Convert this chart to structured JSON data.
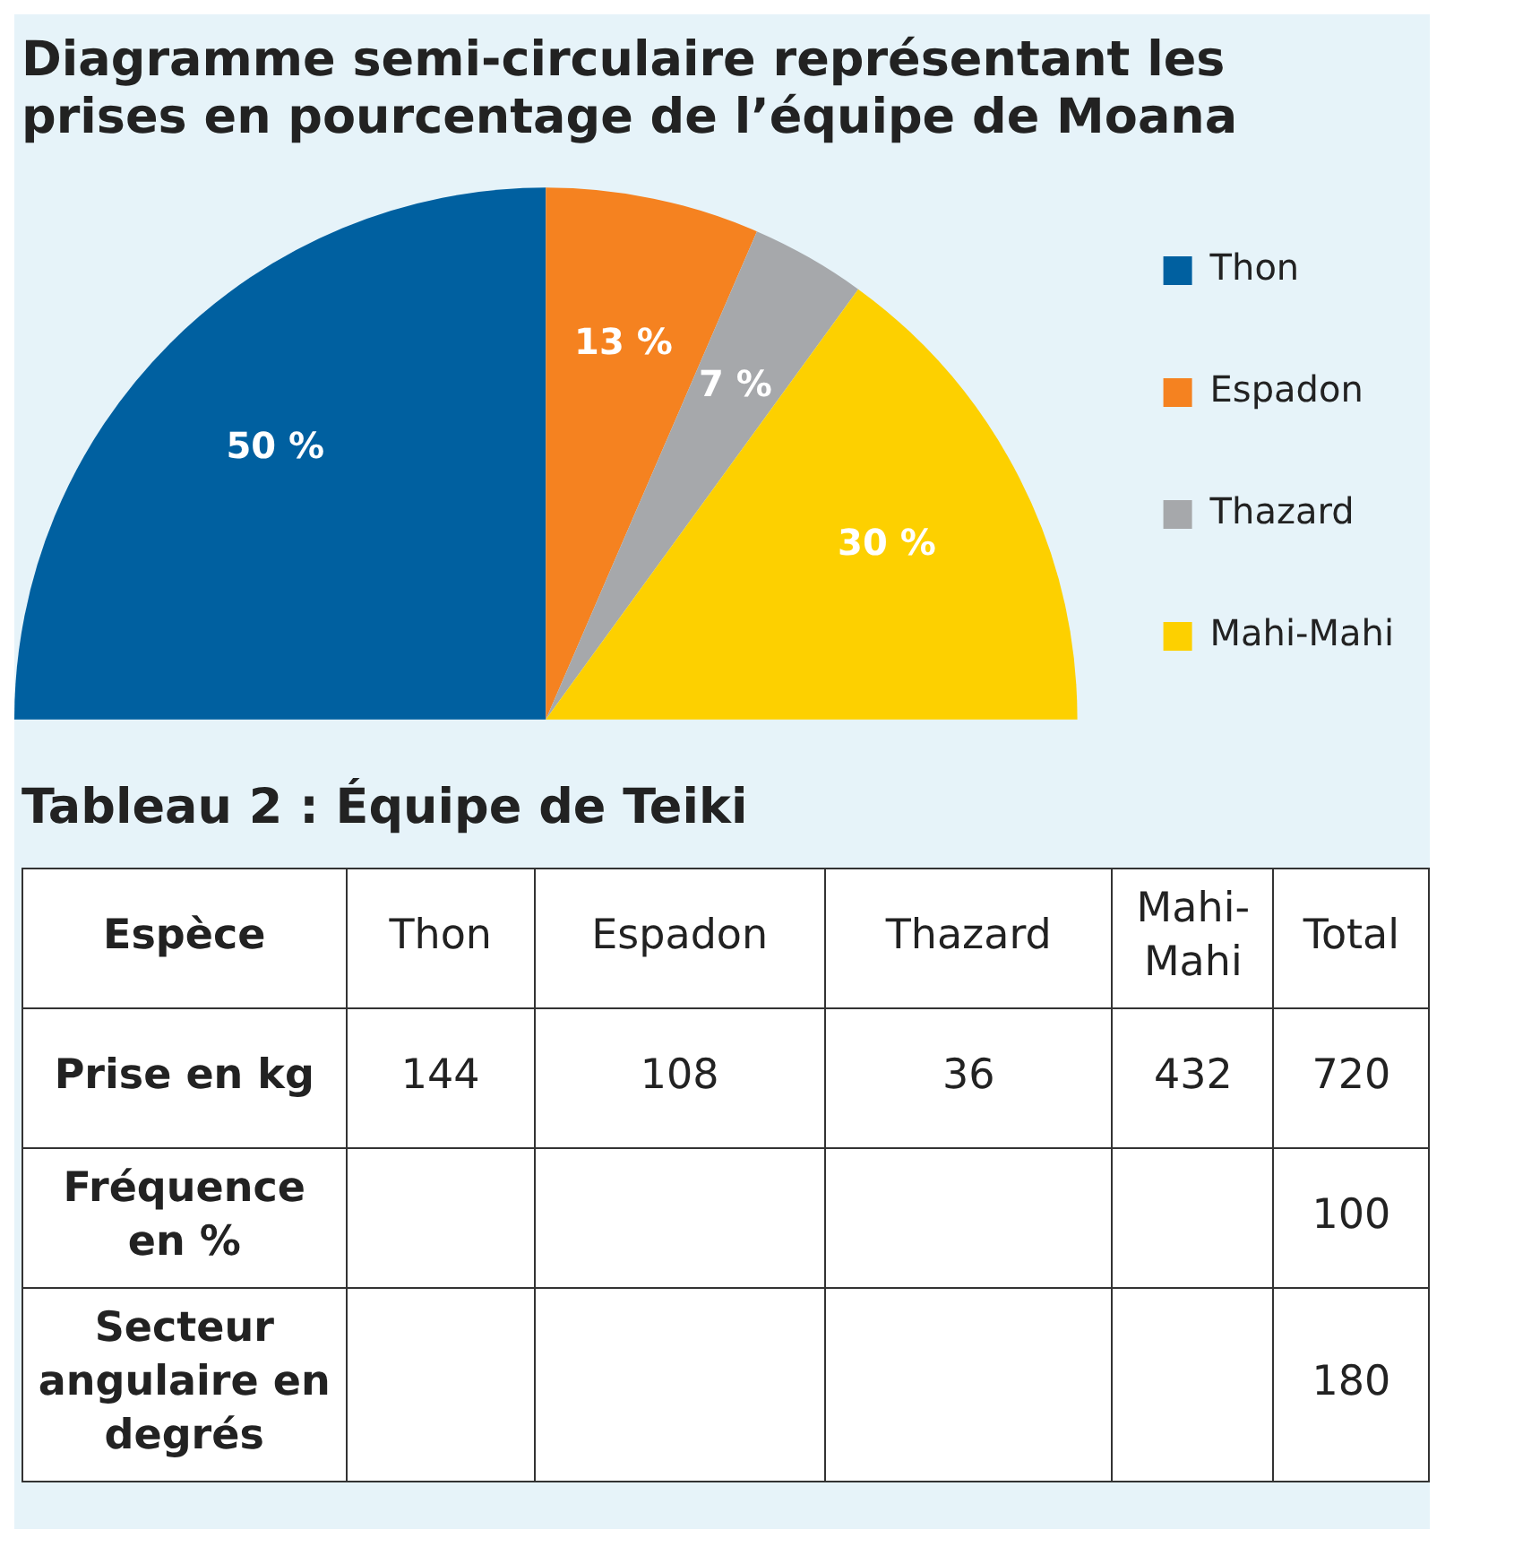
{
  "chart_data": [
    {
      "type": "pie",
      "title": "Diagramme semi-circulaire représentant les prises en pourcentage de l’équipe de Moana",
      "categories": [
        "Thon",
        "Espadon",
        "Thazard",
        "Mahi-Mahi"
      ],
      "values": [
        50,
        13,
        7,
        30
      ],
      "colors": [
        "#0060a0",
        "#f58220",
        "#a6a8ab",
        "#fdd000"
      ],
      "value_labels": [
        "50 %",
        "13 %",
        "7 %",
        "30 %"
      ],
      "legend": "right"
    },
    {
      "type": "other",
      "title": "Tableau 2 : Équipe de Teiki",
      "categories": [
        "Thon",
        "Espadon",
        "Thazard",
        "Mahi-Mahi"
      ],
      "values": [
        144,
        108,
        36,
        432
      ],
      "data_labels": true,
      "annotations": [
        "Espèce",
        "Total",
        "Prise en kg",
        "Fréquence en %",
        "Secteur angulaire en degrés",
        "720",
        "100",
        "180"
      ]
    }
  ]
}
